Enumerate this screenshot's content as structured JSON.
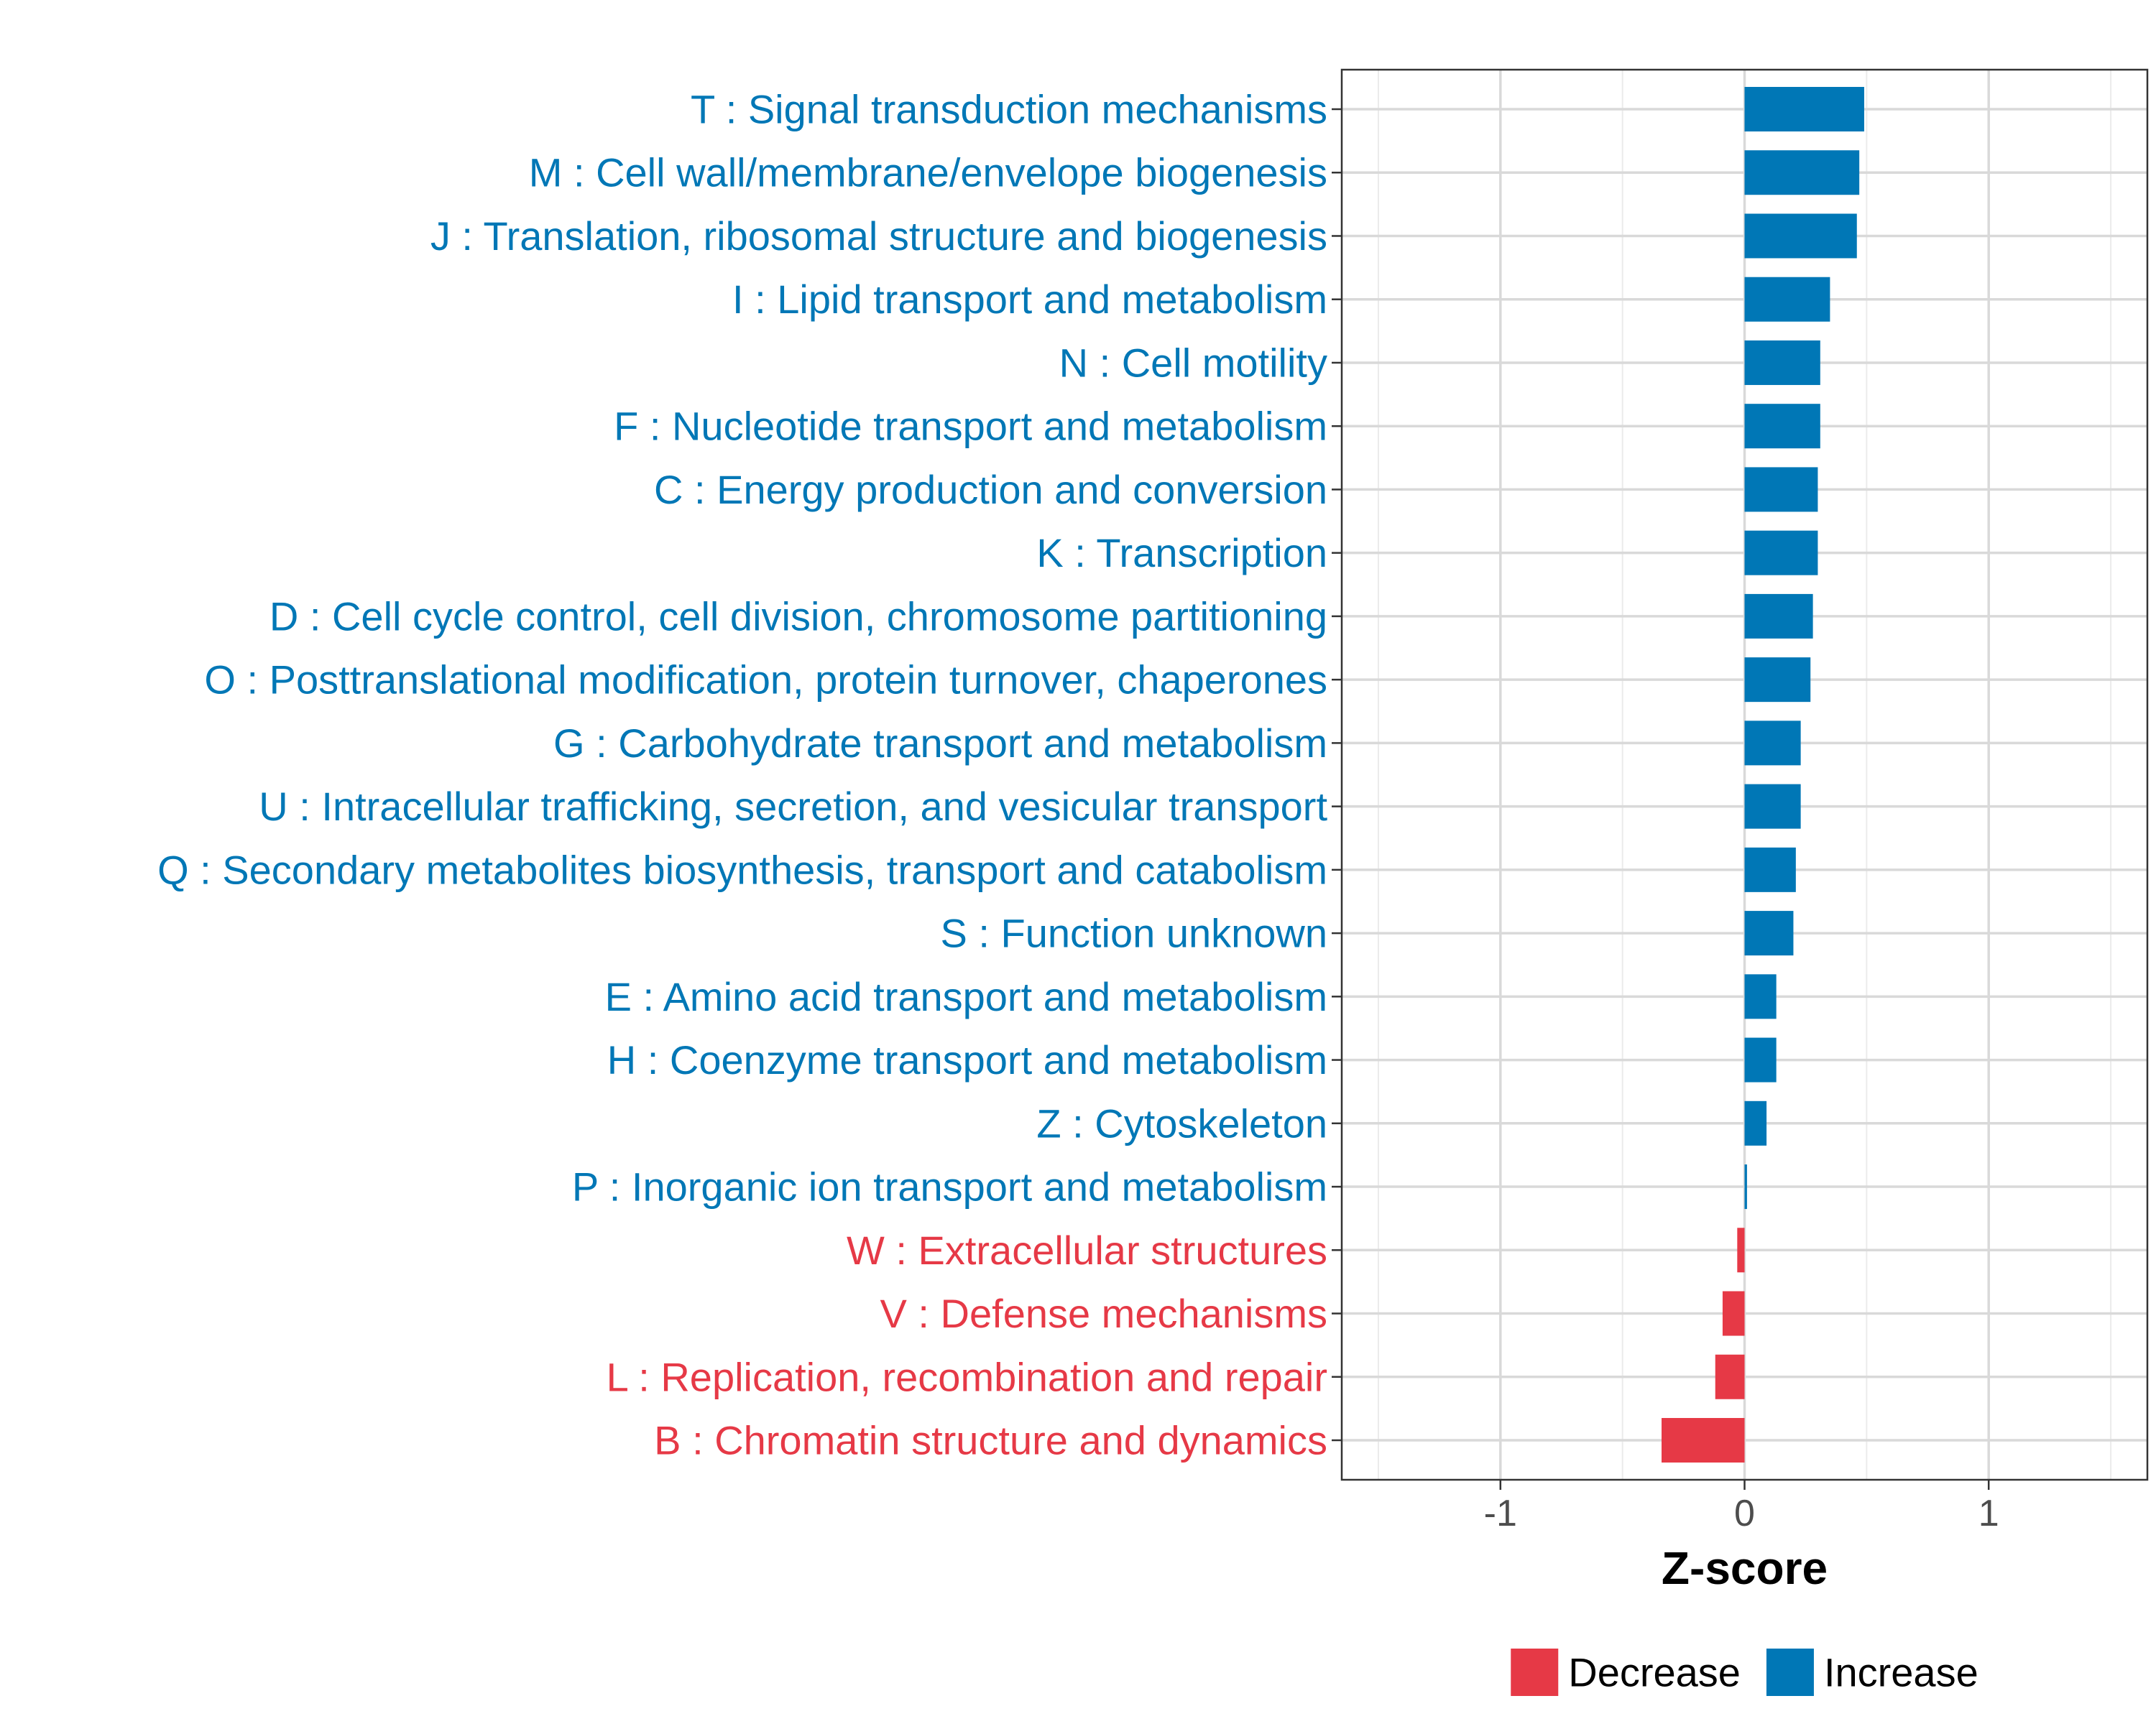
{
  "chart_data": {
    "type": "bar",
    "orientation": "horizontal",
    "title": "",
    "xlabel": "Z-score",
    "ylabel": "",
    "xlim": [
      -1.65,
      1.65
    ],
    "xticks": [
      -1,
      0,
      1
    ],
    "xtick_labels": [
      "-1",
      "0",
      "1"
    ],
    "grid": true,
    "legend_position": "bottom",
    "colors": {
      "Decrease": "#e63946",
      "Increase": "#0077b6"
    },
    "legend": [
      {
        "name": "Decrease",
        "color": "#e63946"
      },
      {
        "name": "Increase",
        "color": "#0077b6"
      }
    ],
    "categories": [
      {
        "label": "T : Signal transduction mechanisms",
        "value": 0.49,
        "group": "Increase"
      },
      {
        "label": "M : Cell wall/membrane/envelope biogenesis",
        "value": 0.47,
        "group": "Increase"
      },
      {
        "label": "J : Translation, ribosomal structure and biogenesis",
        "value": 0.46,
        "group": "Increase"
      },
      {
        "label": "I : Lipid transport and metabolism",
        "value": 0.35,
        "group": "Increase"
      },
      {
        "label": "N : Cell motility",
        "value": 0.31,
        "group": "Increase"
      },
      {
        "label": "F : Nucleotide transport and metabolism",
        "value": 0.31,
        "group": "Increase"
      },
      {
        "label": "C : Energy production and conversion",
        "value": 0.3,
        "group": "Increase"
      },
      {
        "label": "K : Transcription",
        "value": 0.3,
        "group": "Increase"
      },
      {
        "label": "D : Cell cycle control, cell division, chromosome partitioning",
        "value": 0.28,
        "group": "Increase"
      },
      {
        "label": "O : Posttranslational modification, protein turnover, chaperones",
        "value": 0.27,
        "group": "Increase"
      },
      {
        "label": "G : Carbohydrate transport and metabolism",
        "value": 0.23,
        "group": "Increase"
      },
      {
        "label": "U : Intracellular trafficking, secretion, and vesicular transport",
        "value": 0.23,
        "group": "Increase"
      },
      {
        "label": "Q : Secondary metabolites biosynthesis, transport and catabolism",
        "value": 0.21,
        "group": "Increase"
      },
      {
        "label": "S : Function unknown",
        "value": 0.2,
        "group": "Increase"
      },
      {
        "label": "E : Amino acid transport and metabolism",
        "value": 0.13,
        "group": "Increase"
      },
      {
        "label": "H : Coenzyme transport and metabolism",
        "value": 0.13,
        "group": "Increase"
      },
      {
        "label": "Z : Cytoskeleton",
        "value": 0.09,
        "group": "Increase"
      },
      {
        "label": "P : Inorganic ion transport and metabolism",
        "value": 0.01,
        "group": "Increase"
      },
      {
        "label": "W : Extracellular structures",
        "value": -0.03,
        "group": "Decrease"
      },
      {
        "label": "V : Defense mechanisms",
        "value": -0.09,
        "group": "Decrease"
      },
      {
        "label": "L : Replication, recombination and repair",
        "value": -0.12,
        "group": "Decrease"
      },
      {
        "label": "B : Chromatin structure and dynamics",
        "value": -0.34,
        "group": "Decrease"
      }
    ]
  }
}
